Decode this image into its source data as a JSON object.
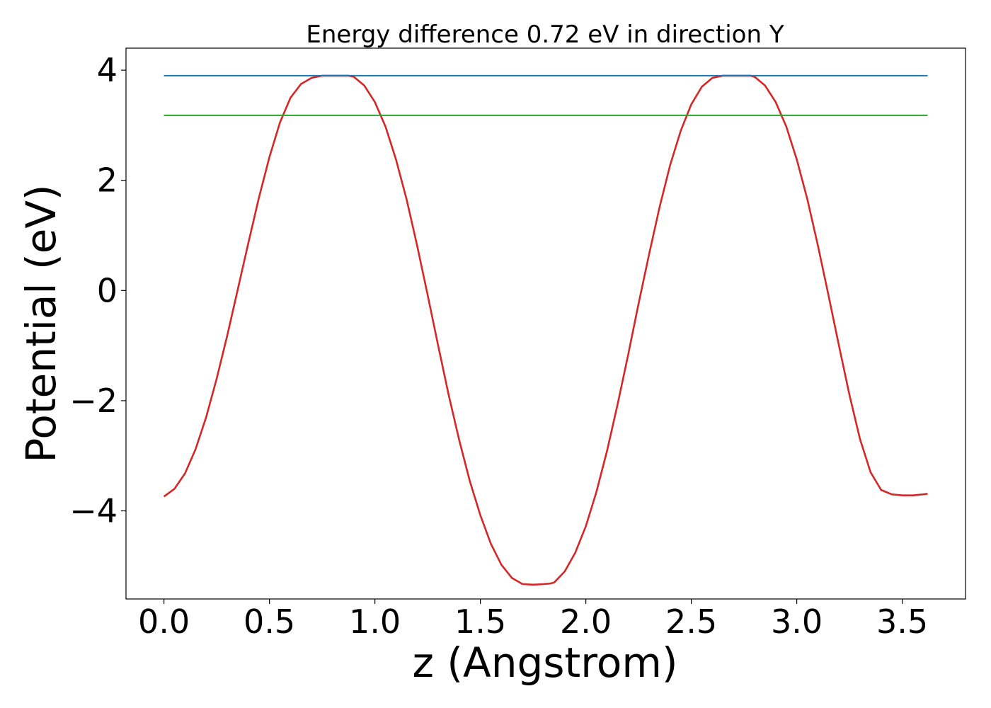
{
  "chart_data": {
    "type": "line",
    "title": "Energy difference 0.72 eV in direction Y",
    "xlabel": "z (Angstrom)",
    "ylabel": "Potential (eV)",
    "xlim": [
      -0.18,
      3.8
    ],
    "ylim": [
      -5.6,
      4.4
    ],
    "x_ticks": [
      0.0,
      0.5,
      1.0,
      1.5,
      2.0,
      2.5,
      3.0,
      3.5
    ],
    "x_tick_labels": [
      "0.0",
      "0.5",
      "1.0",
      "1.5",
      "2.0",
      "2.5",
      "3.0",
      "3.5"
    ],
    "y_ticks": [
      -4,
      -2,
      0,
      2,
      4
    ],
    "y_tick_labels": [
      "−4",
      "−2",
      "0",
      "2",
      "4"
    ],
    "grid": false,
    "series": [
      {
        "color": "#d62728",
        "x": [
          0.0,
          0.05,
          0.1,
          0.15,
          0.2,
          0.25,
          0.3,
          0.35,
          0.4,
          0.45,
          0.5,
          0.55,
          0.6,
          0.65,
          0.7,
          0.75,
          0.8,
          0.85,
          0.875,
          0.9,
          0.95,
          1.0,
          1.05,
          1.1,
          1.15,
          1.2,
          1.25,
          1.3,
          1.35,
          1.4,
          1.45,
          1.5,
          1.55,
          1.6,
          1.65,
          1.7,
          1.75,
          1.8,
          1.83,
          1.85,
          1.9,
          1.95,
          2.0,
          2.05,
          2.1,
          2.15,
          2.2,
          2.25,
          2.3,
          2.35,
          2.4,
          2.45,
          2.5,
          2.55,
          2.6,
          2.65,
          2.7,
          2.75,
          2.78,
          2.8,
          2.85,
          2.9,
          2.95,
          3.0,
          3.05,
          3.1,
          3.15,
          3.2,
          3.25,
          3.3,
          3.35,
          3.4,
          3.45,
          3.5,
          3.55,
          3.6,
          3.62
        ],
        "values": [
          -3.74,
          -3.6,
          -3.32,
          -2.88,
          -2.3,
          -1.6,
          -0.82,
          0.02,
          0.86,
          1.68,
          2.42,
          3.05,
          3.5,
          3.75,
          3.86,
          3.9,
          3.9,
          3.9,
          3.9,
          3.88,
          3.72,
          3.42,
          2.98,
          2.38,
          1.66,
          0.82,
          -0.08,
          -1.0,
          -1.9,
          -2.72,
          -3.46,
          -4.08,
          -4.6,
          -4.98,
          -5.22,
          -5.33,
          -5.34,
          -5.33,
          -5.32,
          -5.3,
          -5.1,
          -4.76,
          -4.28,
          -3.66,
          -2.92,
          -2.08,
          -1.18,
          -0.24,
          0.66,
          1.52,
          2.28,
          2.9,
          3.38,
          3.7,
          3.86,
          3.9,
          3.9,
          3.9,
          3.9,
          3.88,
          3.72,
          3.42,
          2.98,
          2.38,
          1.66,
          0.82,
          -0.08,
          -1.0,
          -1.9,
          -2.7,
          -3.3,
          -3.62,
          -3.7,
          -3.72,
          -3.72,
          -3.7,
          -3.69
        ]
      },
      {
        "color": "#1f77b4",
        "x": [
          0.0,
          3.62
        ],
        "values": [
          3.9,
          3.9
        ]
      },
      {
        "color": "#2ca02c",
        "x": [
          0.0,
          3.62
        ],
        "values": [
          3.18,
          3.18
        ]
      }
    ]
  }
}
